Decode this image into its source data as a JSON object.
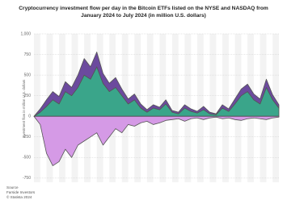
{
  "chart_data": {
    "type": "area",
    "title": "Cryptocurrency investment flow per day in the Bitcoin ETFs listed on the NYSE and NASDAQ from January 2024 to July 2024 (in million U.S. dollars)",
    "y_label": "Investment flow in million U.S. dollars",
    "source": "Source",
    "source_name": "Farside Investors",
    "copyright": "© Statista 2024",
    "ylim": [
      -800,
      1000
    ],
    "yticks": [
      {
        "value": 1000,
        "label": "1,000"
      },
      750,
      500,
      250,
      0,
      -250,
      -500,
      -750
    ],
    "grid": true,
    "categories": [
      null,
      null,
      null,
      null,
      null,
      null,
      null,
      null,
      null,
      null,
      null,
      null,
      null,
      null,
      null,
      null,
      null,
      null,
      null,
      null,
      null,
      null,
      null,
      null,
      null,
      null,
      null,
      null,
      null,
      null,
      null,
      null,
      null,
      null,
      null,
      null,
      null,
      null,
      null,
      null
    ],
    "series": [
      {
        "color": "#3aa58a",
        "values": [
          0,
          50,
          120,
          200,
          150,
          300,
          250,
          350,
          500,
          450,
          600,
          400,
          300,
          350,
          250,
          150,
          200,
          100,
          50,
          100,
          80,
          150,
          50,
          30,
          100,
          60,
          40,
          80,
          30,
          20,
          100,
          60,
          150,
          250,
          300,
          200,
          150,
          350,
          200,
          100
        ]
      },
      {
        "color": "#6c4a9e",
        "values": [
          0,
          40,
          80,
          100,
          90,
          120,
          100,
          150,
          200,
          150,
          180,
          120,
          100,
          120,
          80,
          60,
          70,
          50,
          30,
          40,
          30,
          50,
          20,
          20,
          40,
          30,
          20,
          40,
          20,
          10,
          40,
          30,
          60,
          80,
          90,
          70,
          60,
          100,
          60,
          40
        ]
      },
      {
        "color": "#d59ae6",
        "values": [
          0,
          -100,
          -450,
          -600,
          -550,
          -400,
          -500,
          -350,
          -300,
          -250,
          -200,
          -350,
          -250,
          -150,
          -200,
          -100,
          -120,
          -80,
          -60,
          -100,
          -80,
          -50,
          -40,
          -30,
          -60,
          -30,
          -20,
          -40,
          -20,
          -10,
          -30,
          -20,
          -40,
          -50,
          -30,
          -20,
          -30,
          -40,
          -20,
          -10
        ]
      }
    ]
  }
}
